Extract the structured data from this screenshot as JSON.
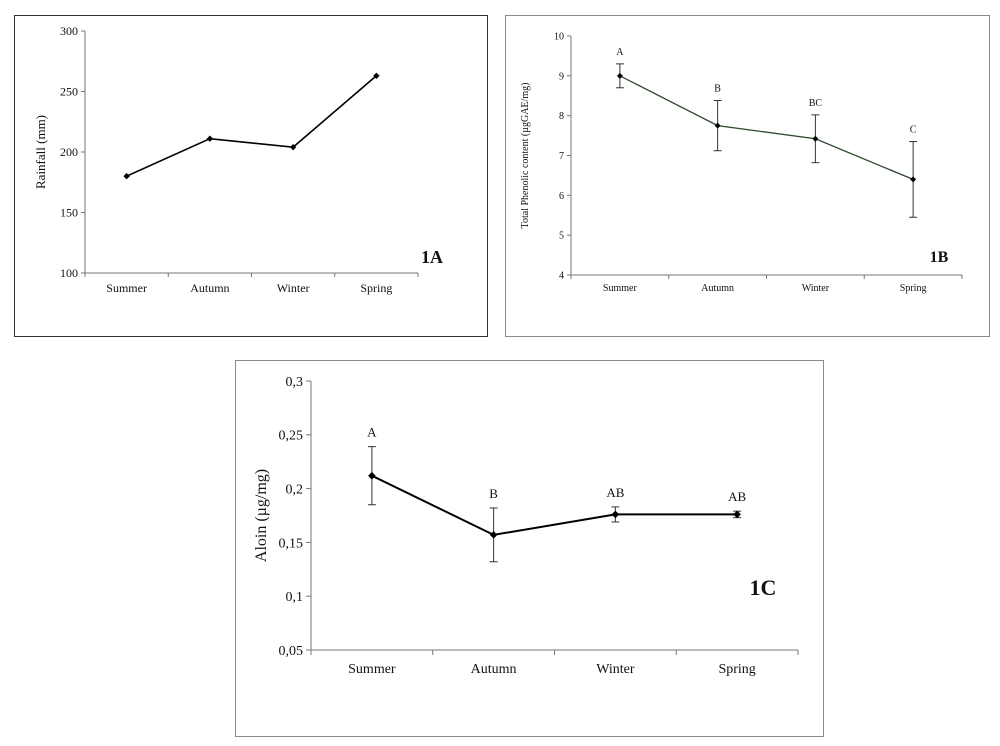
{
  "chart_data": [
    {
      "type": "line",
      "panel_label": "1A",
      "categories": [
        "Summer",
        "Autumn",
        "Winter",
        "Spring"
      ],
      "series": [
        {
          "values": [
            180,
            211,
            204,
            263
          ]
        }
      ],
      "ylabel": "Rainfall  (mm)",
      "ylim": [
        100,
        300
      ],
      "yticks": [
        "100",
        "150",
        "200",
        "250",
        "300"
      ],
      "color": "#000000",
      "grid": false
    },
    {
      "type": "line",
      "panel_label": "1B",
      "categories": [
        "Summer",
        "Autumn",
        "Winter",
        "Spring"
      ],
      "series": [
        {
          "values": [
            9.0,
            7.75,
            7.42,
            6.4
          ],
          "errors": [
            0.3,
            0.63,
            0.6,
            0.95
          ]
        }
      ],
      "annotations": [
        "A",
        "B",
        "BC",
        "C"
      ],
      "ylabel": "Total Phenolic content  (µgGAE/mg)",
      "ylim": [
        4,
        10
      ],
      "yticks": [
        "4",
        "5",
        "6",
        "7",
        "8",
        "9",
        "10"
      ],
      "color": "#2e4a2e",
      "grid": false
    },
    {
      "type": "line",
      "panel_label": "1C",
      "categories": [
        "Summer",
        "Autumn",
        "Winter",
        "Spring"
      ],
      "series": [
        {
          "values": [
            0.212,
            0.157,
            0.176,
            0.176
          ],
          "errors": [
            0.027,
            0.025,
            0.007,
            0.003
          ]
        }
      ],
      "annotations": [
        "A",
        "B",
        "AB",
        "AB"
      ],
      "ylabel": "Aloin (µg/mg)",
      "ylim": [
        0.05,
        0.3
      ],
      "yticks": [
        "0,05",
        "0,1",
        "0,15",
        "0,2",
        "0,25",
        "0,3"
      ],
      "color": "#000000",
      "grid": false
    }
  ]
}
